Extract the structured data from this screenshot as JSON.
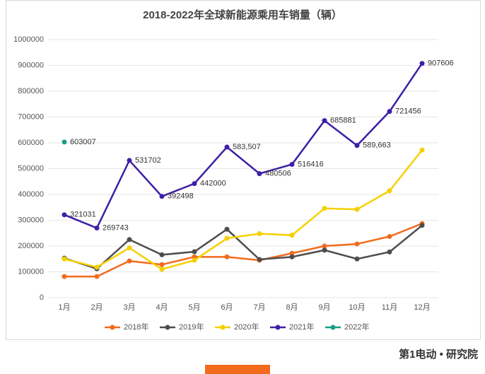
{
  "chart_data": {
    "type": "line",
    "title": "2018-2022年全球新能源乘用车销量（辆）",
    "categories": [
      "1月",
      "2月",
      "3月",
      "4月",
      "5月",
      "6月",
      "7月",
      "8月",
      "9月",
      "10月",
      "11月",
      "12月"
    ],
    "series": [
      {
        "name": "2018年",
        "color": "#f26b1d",
        "values": [
          82000,
          82000,
          142000,
          128000,
          158000,
          158000,
          145000,
          172000,
          200000,
          208000,
          237000,
          287000
        ]
      },
      {
        "name": "2019年",
        "color": "#4d4d4d",
        "values": [
          153000,
          112000,
          225000,
          166000,
          178000,
          265000,
          148000,
          158000,
          184000,
          150000,
          177000,
          280000
        ]
      },
      {
        "name": "2020年",
        "color": "#f5d000",
        "values": [
          150000,
          118000,
          193000,
          110000,
          145000,
          230000,
          248000,
          242000,
          346000,
          342000,
          414000,
          572000
        ]
      },
      {
        "name": "2021年",
        "color": "#3f1fa6",
        "values": [
          321031,
          269743,
          531702,
          392498,
          442000,
          583507,
          480506,
          516416,
          685881,
          589663,
          721456,
          907606
        ],
        "value_labels": [
          "321031",
          "269743",
          "531702",
          "392498",
          "442000",
          "583,507",
          "480506",
          "516416",
          "685881",
          "589,663",
          "721456",
          "907606"
        ]
      },
      {
        "name": "2022年",
        "color": "#1a9e86",
        "values": [
          603007,
          null,
          null,
          null,
          null,
          null,
          null,
          null,
          null,
          null,
          null,
          null
        ],
        "value_labels": [
          "603007",
          null,
          null,
          null,
          null,
          null,
          null,
          null,
          null,
          null,
          null,
          null
        ]
      }
    ],
    "ylim": [
      0,
      1000000
    ],
    "yticks": [
      0,
      100000,
      200000,
      300000,
      400000,
      500000,
      600000,
      700000,
      800000,
      900000,
      1000000
    ],
    "grid": true,
    "legend": "bottom",
    "footer": "第1电动 • 研究院"
  }
}
